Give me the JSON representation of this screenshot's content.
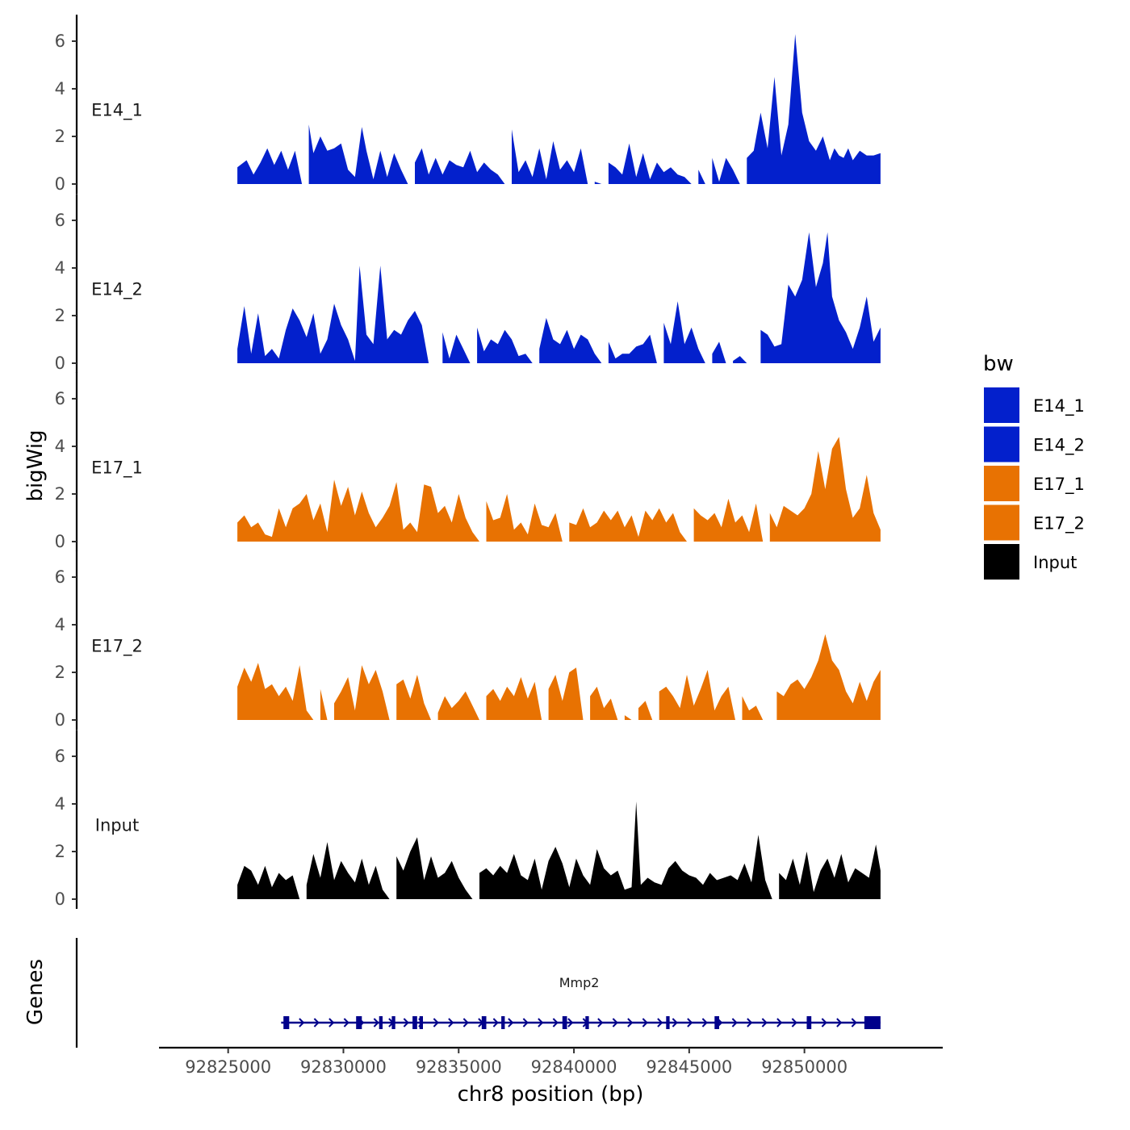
{
  "chart_data": {
    "type": "area",
    "title": "",
    "xlabel": "chr8 position (bp)",
    "ylabel": "bigWig",
    "genes_label": "Genes",
    "xlim": [
      92822000,
      92856000
    ],
    "x_ticks": [
      92825000,
      92830000,
      92835000,
      92840000,
      92845000,
      92850000
    ],
    "x_tick_labels": [
      "92825000",
      "92830000",
      "92835000",
      "92840000",
      "92845000",
      "92850000"
    ],
    "ylim": [
      0,
      6.5
    ],
    "y_ticks": [
      0,
      2,
      4,
      6
    ],
    "y_tick_labels": [
      "0",
      "2",
      "4",
      "6"
    ],
    "legend": {
      "title": "bw",
      "position": "right",
      "entries": [
        {
          "label": "E14_1",
          "color": "#0320cc"
        },
        {
          "label": "E14_2",
          "color": "#0320cc"
        },
        {
          "label": "E17_1",
          "color": "#e87202"
        },
        {
          "label": "E17_2",
          "color": "#e87202"
        },
        {
          "label": "Input",
          "color": "#000000"
        }
      ]
    },
    "series": [
      {
        "name": "E14_1",
        "color": "#0320cc",
        "x": [
          92825400,
          92825800,
          92826100,
          92826400,
          92826700,
          92827000,
          92827300,
          92827600,
          92827900,
          92828200,
          92828500,
          92828700,
          92829000,
          92829300,
          92829600,
          92829900,
          92830200,
          92830500,
          92830800,
          92831000,
          92831300,
          92831600,
          92831900,
          92832200,
          92832500,
          92832800,
          92833100,
          92833400,
          92833700,
          92834000,
          92834300,
          92834600,
          92834900,
          92835200,
          92835500,
          92835800,
          92836100,
          92836400,
          92836700,
          92837000,
          92837300,
          92837600,
          92837900,
          92838200,
          92838500,
          92838800,
          92839100,
          92839400,
          92839700,
          92840000,
          92840300,
          92840600,
          92840900,
          92841200,
          92841500,
          92841800,
          92842100,
          92842400,
          92842700,
          92843000,
          92843300,
          92843600,
          92843900,
          92844200,
          92844500,
          92844800,
          92845100,
          92845400,
          92845700,
          92846000,
          92846300,
          92846600,
          92846900,
          92847200,
          92847500,
          92847800,
          92848100,
          92848400,
          92848700,
          92849000,
          92849300,
          92849600,
          92849900,
          92850200,
          92850500,
          92850800,
          92851100,
          92851300,
          92851500,
          92851700,
          92851900,
          92852100,
          92852400,
          92852700,
          92853000,
          92853300
        ],
        "values": [
          0.7,
          1.0,
          0.4,
          0.9,
          1.5,
          0.8,
          1.4,
          0.6,
          1.4,
          0.0,
          2.5,
          1.3,
          2.0,
          1.4,
          1.5,
          1.7,
          0.6,
          0.3,
          2.4,
          1.4,
          0.2,
          1.4,
          0.3,
          1.3,
          0.6,
          0.0,
          0.9,
          1.5,
          0.4,
          1.1,
          0.4,
          1.0,
          0.8,
          0.7,
          1.4,
          0.5,
          0.9,
          0.6,
          0.4,
          0.0,
          2.3,
          0.5,
          1.0,
          0.3,
          1.5,
          0.2,
          1.8,
          0.6,
          1.0,
          0.5,
          1.5,
          0.0,
          0.1,
          0.0,
          0.9,
          0.7,
          0.4,
          1.7,
          0.3,
          1.3,
          0.2,
          0.9,
          0.5,
          0.7,
          0.4,
          0.3,
          0.0,
          0.6,
          0.0,
          1.1,
          0.1,
          1.1,
          0.6,
          0.0,
          1.1,
          1.4,
          3.0,
          1.5,
          4.5,
          1.2,
          2.5,
          6.3,
          3.0,
          1.8,
          1.4,
          2.0,
          1.0,
          1.5,
          1.2,
          1.1,
          1.5,
          1.0,
          1.4,
          1.2,
          1.2,
          1.3
        ]
      },
      {
        "name": "E14_2",
        "color": "#0320cc",
        "x": [
          92825400,
          92825700,
          92826000,
          92826300,
          92826600,
          92826900,
          92827200,
          92827500,
          92827800,
          92828100,
          92828400,
          92828700,
          92829000,
          92829300,
          92829600,
          92829900,
          92830200,
          92830500,
          92830700,
          92831000,
          92831300,
          92831600,
          92831900,
          92832200,
          92832500,
          92832800,
          92833100,
          92833400,
          92833700,
          92834000,
          92834300,
          92834600,
          92834900,
          92835200,
          92835500,
          92835800,
          92836100,
          92836400,
          92836700,
          92837000,
          92837300,
          92837600,
          92837900,
          92838200,
          92838500,
          92838800,
          92839100,
          92839400,
          92839700,
          92840000,
          92840300,
          92840600,
          92840900,
          92841200,
          92841500,
          92841800,
          92842100,
          92842400,
          92842700,
          92843000,
          92843300,
          92843600,
          92843900,
          92844200,
          92844500,
          92844800,
          92845100,
          92845400,
          92845700,
          92846000,
          92846300,
          92846600,
          92846900,
          92847200,
          92847500,
          92847800,
          92848100,
          92848400,
          92848700,
          92849000,
          92849300,
          92849600,
          92849900,
          92850200,
          92850500,
          92850800,
          92851000,
          92851200,
          92851500,
          92851800,
          92852100,
          92852400,
          92852700,
          92853000,
          92853300
        ],
        "values": [
          0.6,
          2.4,
          0.4,
          2.1,
          0.3,
          0.6,
          0.2,
          1.4,
          2.3,
          1.8,
          1.1,
          2.1,
          0.4,
          1.0,
          2.5,
          1.6,
          1.0,
          0.1,
          4.1,
          1.2,
          0.8,
          4.1,
          1.0,
          1.4,
          1.2,
          1.8,
          2.2,
          1.6,
          0.0,
          0.0,
          1.3,
          0.2,
          1.2,
          0.6,
          0.0,
          1.5,
          0.5,
          1.0,
          0.8,
          1.4,
          1.0,
          0.3,
          0.4,
          0.0,
          0.6,
          1.9,
          1.0,
          0.8,
          1.4,
          0.6,
          1.2,
          1.0,
          0.4,
          0.0,
          0.9,
          0.2,
          0.4,
          0.4,
          0.7,
          0.8,
          1.2,
          0.0,
          1.7,
          0.8,
          2.6,
          0.8,
          1.5,
          0.6,
          0.0,
          0.4,
          0.9,
          0.0,
          0.1,
          0.3,
          0.0,
          0.0,
          1.4,
          1.2,
          0.7,
          0.8,
          3.3,
          2.8,
          3.5,
          5.5,
          3.2,
          4.2,
          5.5,
          2.8,
          1.8,
          1.3,
          0.6,
          1.5,
          2.8,
          0.9,
          1.5
        ]
      },
      {
        "name": "E17_1",
        "color": "#e87202",
        "x": [
          92825400,
          92825700,
          92826000,
          92826300,
          92826600,
          92826900,
          92827200,
          92827500,
          92827800,
          92828100,
          92828400,
          92828700,
          92829000,
          92829300,
          92829600,
          92829900,
          92830200,
          92830500,
          92830800,
          92831100,
          92831400,
          92831700,
          92832000,
          92832300,
          92832600,
          92832900,
          92833200,
          92833500,
          92833800,
          92834100,
          92834400,
          92834700,
          92835000,
          92835300,
          92835600,
          92835900,
          92836200,
          92836500,
          92836800,
          92837100,
          92837400,
          92837700,
          92838000,
          92838300,
          92838600,
          92838900,
          92839200,
          92839500,
          92839800,
          92840100,
          92840400,
          92840700,
          92841000,
          92841300,
          92841600,
          92841900,
          92842200,
          92842500,
          92842800,
          92843100,
          92843400,
          92843700,
          92844000,
          92844300,
          92844600,
          92844900,
          92845200,
          92845500,
          92845800,
          92846100,
          92846400,
          92846700,
          92847000,
          92847300,
          92847600,
          92847900,
          92848200,
          92848500,
          92848800,
          92849100,
          92849400,
          92849700,
          92850000,
          92850300,
          92850600,
          92850900,
          92851200,
          92851500,
          92851800,
          92852100,
          92852400,
          92852700,
          92853000,
          92853300
        ],
        "values": [
          0.8,
          1.1,
          0.6,
          0.8,
          0.3,
          0.2,
          1.4,
          0.6,
          1.4,
          1.6,
          2.0,
          0.9,
          1.6,
          0.4,
          2.6,
          1.5,
          2.3,
          1.1,
          2.1,
          1.2,
          0.6,
          1.0,
          1.5,
          2.5,
          0.5,
          0.8,
          0.4,
          2.4,
          2.3,
          1.2,
          1.5,
          0.8,
          2.0,
          1.0,
          0.4,
          0.0,
          1.7,
          0.9,
          1.0,
          2.0,
          0.5,
          0.8,
          0.3,
          1.6,
          0.7,
          0.6,
          1.2,
          0.0,
          0.8,
          0.7,
          1.4,
          0.6,
          0.8,
          1.3,
          0.9,
          1.3,
          0.6,
          1.1,
          0.2,
          1.3,
          0.9,
          1.4,
          0.8,
          1.2,
          0.4,
          0.0,
          1.4,
          1.1,
          0.9,
          1.2,
          0.6,
          1.8,
          0.8,
          1.1,
          0.4,
          1.6,
          0.0,
          1.2,
          0.6,
          1.5,
          1.3,
          1.1,
          1.4,
          2.0,
          3.8,
          2.2,
          3.9,
          4.4,
          2.2,
          1.0,
          1.4,
          2.8,
          1.2,
          0.5
        ]
      },
      {
        "name": "E17_2",
        "color": "#e87202",
        "x": [
          92825400,
          92825700,
          92826000,
          92826300,
          92826600,
          92826900,
          92827200,
          92827500,
          92827800,
          92828100,
          92828400,
          92828700,
          92829000,
          92829300,
          92829600,
          92829900,
          92830200,
          92830500,
          92830800,
          92831100,
          92831400,
          92831700,
          92832000,
          92832300,
          92832600,
          92832900,
          92833200,
          92833500,
          92833800,
          92834100,
          92834400,
          92834700,
          92835000,
          92835300,
          92835600,
          92835900,
          92836200,
          92836500,
          92836800,
          92837100,
          92837400,
          92837700,
          92838000,
          92838300,
          92838600,
          92838900,
          92839200,
          92839500,
          92839800,
          92840100,
          92840400,
          92840700,
          92841000,
          92841300,
          92841600,
          92841900,
          92842200,
          92842500,
          92842800,
          92843100,
          92843400,
          92843700,
          92844000,
          92844300,
          92844600,
          92844900,
          92845200,
          92845500,
          92845800,
          92846100,
          92846400,
          92846700,
          92847000,
          92847300,
          92847600,
          92847900,
          92848200,
          92848500,
          92848800,
          92849100,
          92849400,
          92849700,
          92850000,
          92850300,
          92850600,
          92850900,
          92851200,
          92851500,
          92851800,
          92852100,
          92852400,
          92852700,
          92853000,
          92853300
        ],
        "values": [
          1.4,
          2.2,
          1.6,
          2.4,
          1.3,
          1.5,
          1.0,
          1.4,
          0.8,
          2.3,
          0.4,
          0.0,
          1.3,
          0.0,
          0.7,
          1.2,
          1.8,
          0.4,
          2.3,
          1.5,
          2.1,
          1.2,
          0.0,
          1.5,
          1.7,
          0.9,
          1.9,
          0.7,
          0.0,
          0.3,
          1.0,
          0.5,
          0.8,
          1.2,
          0.6,
          0.0,
          1.0,
          1.3,
          0.8,
          1.4,
          1.0,
          1.8,
          0.9,
          1.6,
          0.0,
          1.3,
          1.9,
          0.8,
          2.0,
          2.2,
          0.0,
          1.0,
          1.4,
          0.5,
          0.9,
          0.0,
          0.2,
          0.0,
          0.5,
          0.8,
          0.0,
          1.2,
          1.4,
          1.0,
          0.5,
          1.9,
          0.6,
          1.3,
          2.1,
          0.4,
          1.0,
          1.4,
          0.0,
          1.0,
          0.4,
          0.6,
          0.0,
          0.0,
          1.2,
          1.0,
          1.5,
          1.7,
          1.3,
          1.8,
          2.5,
          3.6,
          2.5,
          2.1,
          1.2,
          0.7,
          1.6,
          0.8,
          1.6,
          2.1
        ]
      },
      {
        "name": "Input",
        "color": "#000000",
        "x": [
          92825400,
          92825700,
          92826000,
          92826300,
          92826600,
          92826900,
          92827200,
          92827500,
          92827800,
          92828100,
          92828400,
          92828700,
          92829000,
          92829300,
          92829600,
          92829900,
          92830200,
          92830500,
          92830800,
          92831100,
          92831400,
          92831700,
          92832000,
          92832300,
          92832600,
          92832900,
          92833200,
          92833500,
          92833800,
          92834100,
          92834400,
          92834700,
          92835000,
          92835300,
          92835600,
          92835900,
          92836200,
          92836500,
          92836800,
          92837100,
          92837400,
          92837700,
          92838000,
          92838300,
          92838600,
          92838900,
          92839200,
          92839500,
          92839800,
          92840100,
          92840400,
          92840700,
          92841000,
          92841300,
          92841600,
          92841900,
          92842200,
          92842500,
          92842700,
          92842900,
          92843200,
          92843500,
          92843800,
          92844100,
          92844400,
          92844700,
          92845000,
          92845300,
          92845600,
          92845900,
          92846200,
          92846500,
          92846800,
          92847100,
          92847400,
          92847700,
          92848000,
          92848300,
          92848600,
          92848900,
          92849200,
          92849500,
          92849800,
          92850100,
          92850400,
          92850700,
          92851000,
          92851300,
          92851600,
          92851900,
          92852200,
          92852500,
          92852800,
          92853100,
          92853300
        ],
        "values": [
          0.6,
          1.4,
          1.2,
          0.6,
          1.4,
          0.5,
          1.1,
          0.8,
          1.0,
          0.0,
          0.6,
          1.9,
          0.9,
          2.4,
          0.8,
          1.6,
          1.1,
          0.7,
          1.7,
          0.6,
          1.4,
          0.4,
          0.0,
          1.8,
          1.2,
          2.0,
          2.6,
          0.8,
          1.8,
          0.9,
          1.1,
          1.6,
          0.9,
          0.4,
          0.0,
          1.1,
          1.3,
          1.0,
          1.4,
          1.1,
          1.9,
          1.0,
          0.8,
          1.7,
          0.4,
          1.6,
          2.2,
          1.5,
          0.5,
          1.7,
          1.0,
          0.6,
          2.1,
          1.3,
          1.0,
          1.2,
          0.4,
          0.5,
          4.1,
          0.6,
          0.9,
          0.7,
          0.6,
          1.3,
          1.6,
          1.2,
          1.0,
          0.9,
          0.6,
          1.1,
          0.8,
          0.9,
          1.0,
          0.8,
          1.5,
          0.7,
          2.7,
          0.8,
          0.0,
          1.1,
          0.8,
          1.7,
          0.6,
          2.0,
          0.3,
          1.2,
          1.7,
          0.9,
          1.9,
          0.7,
          1.3,
          1.1,
          0.9,
          2.3,
          1.2
        ]
      }
    ],
    "genes": [
      {
        "name": "Mmp2",
        "start": 92827300,
        "end": 92853300,
        "strand": "+",
        "color": "#00008b",
        "exons": [
          [
            92827400,
            92827650
          ],
          [
            92830550,
            92830800
          ],
          [
            92831550,
            92831700
          ],
          [
            92832100,
            92832250
          ],
          [
            92833000,
            92833200
          ],
          [
            92833300,
            92833450
          ],
          [
            92836000,
            92836200
          ],
          [
            92836850,
            92837000
          ],
          [
            92839500,
            92839700
          ],
          [
            92840500,
            92840650
          ],
          [
            92844000,
            92844150
          ],
          [
            92846100,
            92846300
          ],
          [
            92850100,
            92850300
          ],
          [
            92852600,
            92853300
          ]
        ]
      }
    ]
  }
}
